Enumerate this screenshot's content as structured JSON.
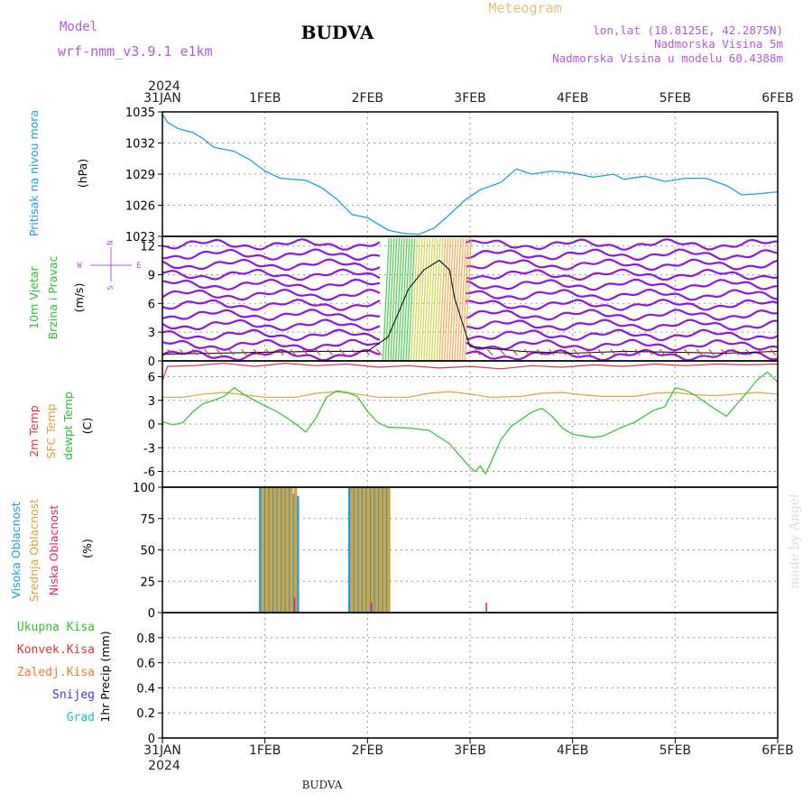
{
  "header": {
    "model_label": "Model",
    "model_name": "wrf-nmm_v3.9.1  e1km",
    "station": "BUDVA",
    "meteogram_label": "Meteogram",
    "coords": "lon,lat (18.8125E, 42.2875N)",
    "altitude": "Nadmorska Visina 5m",
    "model_altitude": "Nadmorska Visina u modelu 60.4388m",
    "footer_station": "BUDVA",
    "watermark": "made by Angel",
    "year": "2024"
  },
  "colors": {
    "pressure": "#1a9fe0",
    "wind_speed": "#8c1ad6",
    "wind_red": "#e02b2b",
    "temp_2m": "#e03535",
    "temp_sfc": "#d9a23a",
    "dewpoint": "#2ec22e",
    "cloud_high": "#1a9fe0",
    "cloud_mid": "#d9a23a",
    "cloud_low": "#e0207a",
    "precip_total": "#2ec22e",
    "precip_conv": "#e03535",
    "precip_freezing": "#f07a30",
    "precip_snow": "#3a3ad6",
    "precip_hail": "#20c0c0"
  },
  "chart_data": [
    {
      "type": "line",
      "panel": "pressure",
      "ylabel_lines": [
        "Pritisak na nivou mora",
        "(hPa)"
      ],
      "ylim": [
        1023,
        1035
      ],
      "yticks": [
        1023,
        1026,
        1029,
        1032,
        1035
      ],
      "x_ticks": [
        "31JAN",
        "1FEB",
        "2FEB",
        "3FEB",
        "4FEB",
        "5FEB",
        "6FEB"
      ],
      "series": [
        {
          "values": [
            [
              0,
              1034.8
            ],
            [
              0.05,
              1034
            ],
            [
              0.15,
              1033.4
            ],
            [
              0.3,
              1033
            ],
            [
              0.4,
              1032.4
            ],
            [
              0.5,
              1031.6
            ],
            [
              0.7,
              1031.2
            ],
            [
              0.85,
              1030.4
            ],
            [
              1.0,
              1029.3
            ],
            [
              1.15,
              1028.6
            ],
            [
              1.4,
              1028.4
            ],
            [
              1.55,
              1027.7
            ],
            [
              1.7,
              1026.6
            ],
            [
              1.85,
              1025.1
            ],
            [
              2.0,
              1024.8
            ],
            [
              2.1,
              1024.2
            ],
            [
              2.2,
              1023.6
            ],
            [
              2.35,
              1023.3
            ],
            [
              2.5,
              1023.2
            ],
            [
              2.65,
              1023.8
            ],
            [
              2.8,
              1025.1
            ],
            [
              2.95,
              1026.5
            ],
            [
              3.1,
              1027.5
            ],
            [
              3.3,
              1028.2
            ],
            [
              3.45,
              1029.5
            ],
            [
              3.6,
              1029.0
            ],
            [
              3.8,
              1029.3
            ],
            [
              4.0,
              1029.1
            ],
            [
              4.2,
              1028.7
            ],
            [
              4.4,
              1029.0
            ],
            [
              4.5,
              1028.5
            ],
            [
              4.7,
              1028.8
            ],
            [
              4.9,
              1028.3
            ],
            [
              5.1,
              1028.6
            ],
            [
              5.3,
              1028.6
            ],
            [
              5.5,
              1027.9
            ],
            [
              5.65,
              1027.0
            ],
            [
              5.8,
              1027.1
            ],
            [
              6.0,
              1027.3
            ]
          ]
        }
      ]
    },
    {
      "type": "line",
      "panel": "wind",
      "ylabel_lines": [
        "10m Vjetar",
        "Brzina i Pravac",
        "(m/s)"
      ],
      "direction_legend": [
        "N",
        "S",
        "E",
        "W"
      ],
      "ylim": [
        0,
        13
      ],
      "yticks": [
        0,
        3,
        6,
        9,
        12
      ],
      "series": [
        {
          "name": "Brzina",
          "values": [
            [
              0,
              0.7
            ],
            [
              0.5,
              0.8
            ],
            [
              1.0,
              0.9
            ],
            [
              1.5,
              1.0
            ],
            [
              2.0,
              1.0
            ],
            [
              2.2,
              2.5
            ],
            [
              2.4,
              7.5
            ],
            [
              2.55,
              9.5
            ],
            [
              2.7,
              10.5
            ],
            [
              2.8,
              9.5
            ],
            [
              2.85,
              6.5
            ],
            [
              3.0,
              1.5
            ],
            [
              3.5,
              1.0
            ],
            [
              4.0,
              0.8
            ],
            [
              4.5,
              1.0
            ],
            [
              5.0,
              0.9
            ],
            [
              5.5,
              0.8
            ],
            [
              6.0,
              1.0
            ]
          ]
        }
      ]
    },
    {
      "type": "line",
      "panel": "temperature",
      "ylabel_lines": [
        "2m Temp",
        "SFC Temp",
        "dewpt Temp",
        "(C)"
      ],
      "ylim": [
        -8,
        8
      ],
      "yticks": [
        -6,
        -3,
        0,
        3,
        6
      ],
      "series": [
        {
          "name": "2m Temp",
          "values": [
            [
              0,
              5.5
            ],
            [
              0.05,
              7.3
            ],
            [
              0.3,
              7.4
            ],
            [
              0.6,
              7.7
            ],
            [
              0.9,
              7.3
            ],
            [
              1.2,
              7.7
            ],
            [
              1.5,
              7.4
            ],
            [
              1.8,
              7.6
            ],
            [
              2.1,
              7.2
            ],
            [
              2.4,
              7.4
            ],
            [
              2.7,
              7.1
            ],
            [
              3.0,
              7.3
            ],
            [
              3.3,
              7.0
            ],
            [
              3.6,
              7.4
            ],
            [
              3.9,
              7.2
            ],
            [
              4.2,
              7.5
            ],
            [
              4.5,
              7.3
            ],
            [
              4.8,
              7.6
            ],
            [
              5.1,
              7.4
            ],
            [
              5.4,
              7.6
            ],
            [
              5.7,
              7.5
            ],
            [
              6.0,
              7.6
            ]
          ]
        },
        {
          "name": "SFC Temp",
          "values": [
            [
              0,
              3.4
            ],
            [
              0.2,
              3.4
            ],
            [
              0.4,
              3.8
            ],
            [
              0.6,
              4.0
            ],
            [
              0.8,
              3.7
            ],
            [
              1.0,
              3.4
            ],
            [
              1.3,
              3.4
            ],
            [
              1.5,
              3.9
            ],
            [
              1.7,
              4.1
            ],
            [
              1.9,
              3.8
            ],
            [
              2.1,
              3.4
            ],
            [
              2.4,
              3.4
            ],
            [
              2.6,
              3.9
            ],
            [
              2.8,
              4.1
            ],
            [
              3.0,
              3.8
            ],
            [
              3.2,
              3.4
            ],
            [
              3.5,
              3.5
            ],
            [
              3.7,
              3.9
            ],
            [
              3.9,
              4.0
            ],
            [
              4.1,
              3.7
            ],
            [
              4.3,
              3.5
            ],
            [
              4.6,
              3.5
            ],
            [
              4.8,
              3.9
            ],
            [
              5.0,
              4.0
            ],
            [
              5.2,
              3.7
            ],
            [
              5.4,
              3.6
            ],
            [
              5.6,
              3.8
            ],
            [
              5.8,
              4.0
            ],
            [
              6.0,
              3.8
            ]
          ]
        },
        {
          "name": "dewpt Temp",
          "values": [
            [
              0,
              0.3
            ],
            [
              0.1,
              -0.1
            ],
            [
              0.2,
              0.2
            ],
            [
              0.3,
              1.6
            ],
            [
              0.4,
              2.6
            ],
            [
              0.5,
              3.0
            ],
            [
              0.6,
              3.5
            ],
            [
              0.7,
              4.6
            ],
            [
              0.8,
              3.7
            ],
            [
              0.9,
              3.0
            ],
            [
              1.0,
              2.3
            ],
            [
              1.1,
              1.7
            ],
            [
              1.2,
              0.9
            ],
            [
              1.3,
              0.0
            ],
            [
              1.4,
              -1.0
            ],
            [
              1.5,
              0.8
            ],
            [
              1.6,
              3.4
            ],
            [
              1.7,
              4.2
            ],
            [
              1.8,
              4.0
            ],
            [
              1.9,
              3.5
            ],
            [
              2.0,
              1.6
            ],
            [
              2.1,
              0.2
            ],
            [
              2.2,
              -0.4
            ],
            [
              2.4,
              -0.5
            ],
            [
              2.6,
              -0.8
            ],
            [
              2.8,
              -2.5
            ],
            [
              2.9,
              -4.0
            ],
            [
              3.0,
              -5.5
            ],
            [
              3.05,
              -6.0
            ],
            [
              3.1,
              -5.3
            ],
            [
              3.15,
              -6.3
            ],
            [
              3.2,
              -5.0
            ],
            [
              3.3,
              -2.0
            ],
            [
              3.4,
              -0.3
            ],
            [
              3.5,
              0.6
            ],
            [
              3.6,
              1.5
            ],
            [
              3.7,
              2.0
            ],
            [
              3.8,
              1.0
            ],
            [
              3.9,
              -0.5
            ],
            [
              4.0,
              -1.3
            ],
            [
              4.1,
              -1.5
            ],
            [
              4.2,
              -1.7
            ],
            [
              4.3,
              -1.5
            ],
            [
              4.4,
              -0.9
            ],
            [
              4.5,
              -0.3
            ],
            [
              4.6,
              0.2
            ],
            [
              4.7,
              1.0
            ],
            [
              4.8,
              1.8
            ],
            [
              4.9,
              2.2
            ],
            [
              5.0,
              4.6
            ],
            [
              5.1,
              4.3
            ],
            [
              5.2,
              3.6
            ],
            [
              5.3,
              2.7
            ],
            [
              5.4,
              1.8
            ],
            [
              5.5,
              1.0
            ],
            [
              5.6,
              2.5
            ],
            [
              5.7,
              4.0
            ],
            [
              5.8,
              5.6
            ],
            [
              5.9,
              6.6
            ],
            [
              6.0,
              5.3
            ],
            [
              6.0,
              4.7
            ]
          ]
        }
      ]
    },
    {
      "type": "bar",
      "panel": "clouds",
      "ylabel_lines": [
        "Visoka Oblacnost",
        "Srednja Oblacnost",
        "Niska Oblacnost",
        "(%)"
      ],
      "ylim": [
        0,
        100
      ],
      "yticks": [
        0,
        25,
        50,
        75,
        100
      ],
      "series": [
        {
          "name": "Visoka Oblacnost",
          "values": [
            [
              0.96,
              100
            ],
            [
              1.0,
              100
            ],
            [
              1.04,
              100
            ],
            [
              1.08,
              100
            ],
            [
              1.12,
              100
            ],
            [
              1.16,
              100
            ],
            [
              1.2,
              100
            ],
            [
              1.24,
              100
            ],
            [
              1.28,
              95
            ],
            [
              1.32,
              93
            ],
            [
              1.83,
              100
            ],
            [
              1.87,
              100
            ],
            [
              1.91,
              100
            ],
            [
              1.95,
              100
            ],
            [
              1.99,
              100
            ],
            [
              2.03,
              100
            ],
            [
              2.07,
              100
            ],
            [
              2.11,
              100
            ],
            [
              2.15,
              100
            ],
            [
              2.19,
              100
            ]
          ]
        },
        {
          "name": "Srednja Oblacnost",
          "values": [
            [
              0.98,
              100
            ],
            [
              1.02,
              100
            ],
            [
              1.06,
              100
            ],
            [
              1.1,
              100
            ],
            [
              1.14,
              100
            ],
            [
              1.18,
              100
            ],
            [
              1.22,
              100
            ],
            [
              1.26,
              100
            ],
            [
              1.3,
              100
            ],
            [
              1.85,
              100
            ],
            [
              1.89,
              100
            ],
            [
              1.93,
              100
            ],
            [
              1.97,
              100
            ],
            [
              2.01,
              100
            ],
            [
              2.05,
              100
            ],
            [
              2.09,
              100
            ],
            [
              2.13,
              100
            ],
            [
              2.17,
              100
            ],
            [
              2.21,
              100
            ]
          ]
        },
        {
          "name": "Niska Oblacnost",
          "values": [
            [
              1.3,
              12
            ],
            [
              2.05,
              8
            ],
            [
              3.17,
              8
            ]
          ]
        }
      ]
    },
    {
      "type": "line",
      "panel": "precip",
      "ylabel_lines": [
        "1hr Precip (mm)"
      ],
      "legend": [
        "Ukupna Kisa",
        "Konvek.Kisa",
        "Zaledj.Kisa",
        "Snijeg",
        "Grad"
      ],
      "ylim": [
        0,
        1.0
      ],
      "yticks": [
        0,
        0.2,
        0.4,
        0.6,
        0.8
      ],
      "series": [
        {
          "name": "Ukupna Kisa",
          "values": [
            [
              0,
              0
            ],
            [
              6,
              0
            ]
          ]
        }
      ]
    }
  ]
}
